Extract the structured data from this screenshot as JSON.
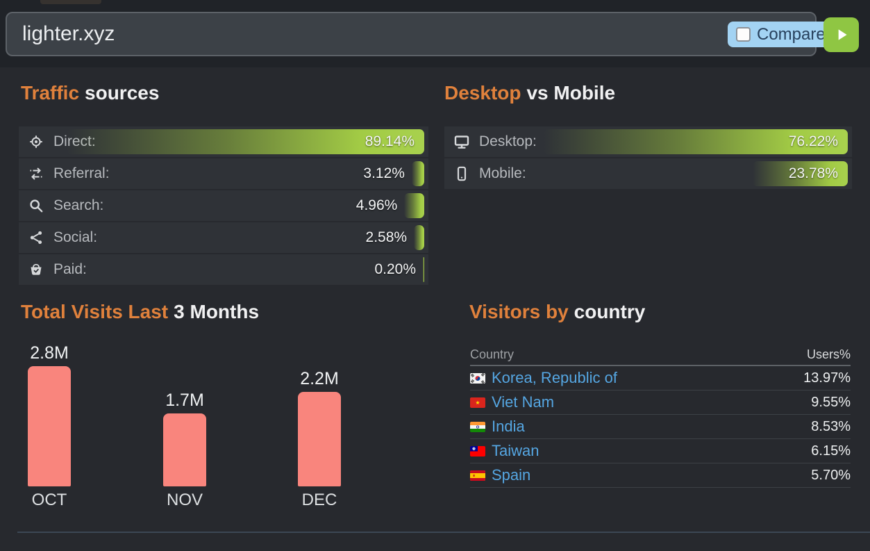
{
  "colors": {
    "accent_orange": "#e0813c",
    "bar_green": "#9fc93f",
    "bar_salmon": "#f9857d",
    "link_blue": "#55a6e2",
    "compare_blue": "#a3d3f3",
    "go_green": "#8fc643"
  },
  "header": {
    "url_value": "lighter.xyz",
    "compare": {
      "label": "Compare",
      "checked": false
    },
    "go_icon": "play-icon"
  },
  "traffic_sources": {
    "title_accent": "Traffic",
    "title_rest": "sources",
    "rows": [
      {
        "icon": "direct-icon",
        "label": "Direct:",
        "value": "89.14%",
        "pct": 89.14
      },
      {
        "icon": "referral-icon",
        "label": "Referral:",
        "value": "3.12%",
        "pct": 3.12
      },
      {
        "icon": "search-icon",
        "label": "Search:",
        "value": "4.96%",
        "pct": 4.96
      },
      {
        "icon": "social-icon",
        "label": "Social:",
        "value": "2.58%",
        "pct": 2.58
      },
      {
        "icon": "paid-icon",
        "label": "Paid:",
        "value": "0.20%",
        "pct": 0.2
      }
    ]
  },
  "desktop_mobile": {
    "title_accent": "Desktop",
    "title_rest": "vs Mobile",
    "rows": [
      {
        "icon": "desktop-icon",
        "label": "Desktop:",
        "value": "76.22%",
        "pct": 76.22
      },
      {
        "icon": "mobile-icon",
        "label": "Mobile:",
        "value": "23.78%",
        "pct": 23.78
      }
    ]
  },
  "chart_data": {
    "type": "bar",
    "title_accent": "Total Visits Last",
    "title_rest": "3 Months",
    "categories": [
      "OCT",
      "NOV",
      "DEC"
    ],
    "values": [
      2.8,
      1.7,
      2.2
    ],
    "value_labels": [
      "2.8M",
      "1.7M",
      "2.2M"
    ],
    "unit": "millions of visits",
    "ylim": [
      0,
      2.8
    ],
    "bar_color": "#f9857d",
    "grid": false,
    "legend": "none"
  },
  "visitors_by_country": {
    "title_accent": "Visitors by",
    "title_rest": "country",
    "columns": [
      "Country",
      "Users%"
    ],
    "rows": [
      {
        "flag": "flag-south-korea",
        "name": "Korea, Republic of",
        "value": "13.97%"
      },
      {
        "flag": "flag-vietnam",
        "name": "Viet Nam",
        "value": "9.55%"
      },
      {
        "flag": "flag-india",
        "name": "India",
        "value": "8.53%"
      },
      {
        "flag": "flag-taiwan",
        "name": "Taiwan",
        "value": "6.15%"
      },
      {
        "flag": "flag-spain",
        "name": "Spain",
        "value": "5.70%"
      }
    ]
  }
}
